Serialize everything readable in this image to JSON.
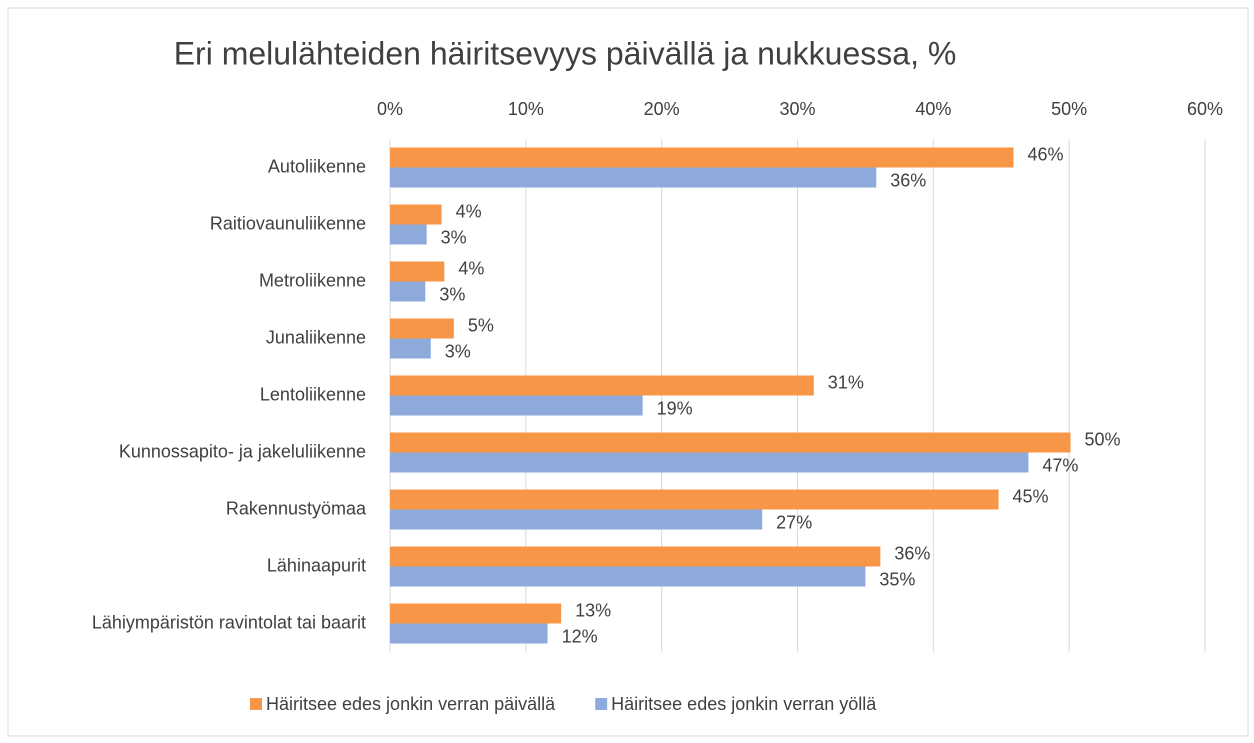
{
  "chart_data": {
    "type": "hbar",
    "title": "Eri melulähteiden häiritsevyys päivällä ja nukkuessa, %",
    "categories": [
      "Autoliikenne",
      "Raitiovaunuliikenne",
      "Metroliikenne",
      "Junaliikenne",
      "Lentoliikenne",
      "Kunnossapito- ja jakeluliikenne",
      "Rakennustyömaa",
      "Lähinaapurit",
      "Lähiympäristön ravintolat tai baarit"
    ],
    "series": [
      {
        "name": "Häiritsee edes jonkin verran päivällä",
        "color": "#f79646",
        "values": [
          45.9,
          3.8,
          4.0,
          4.7,
          31.2,
          50.1,
          44.8,
          36.1,
          12.6
        ],
        "value_labels": [
          "46%",
          "4%",
          "4%",
          "5%",
          "31%",
          "50%",
          "45%",
          "36%",
          "13%"
        ]
      },
      {
        "name": "Häiritsee edes jonkin verran yöllä",
        "color": "#8eaadb",
        "values": [
          35.8,
          2.7,
          2.6,
          3.0,
          18.6,
          47.0,
          27.4,
          35.0,
          11.6
        ],
        "value_labels": [
          "36%",
          "3%",
          "3%",
          "3%",
          "19%",
          "47%",
          "27%",
          "35%",
          "12%"
        ]
      }
    ],
    "xlim": [
      0,
      60
    ],
    "xticks": [
      {
        "value": 0,
        "label": "0%"
      },
      {
        "value": 10,
        "label": "10%"
      },
      {
        "value": 20,
        "label": "20%"
      },
      {
        "value": 30,
        "label": "30%"
      },
      {
        "value": 40,
        "label": "40%"
      },
      {
        "value": 50,
        "label": "50%"
      },
      {
        "value": 60,
        "label": "60%"
      }
    ],
    "grid": true,
    "legend": "bottom"
  }
}
